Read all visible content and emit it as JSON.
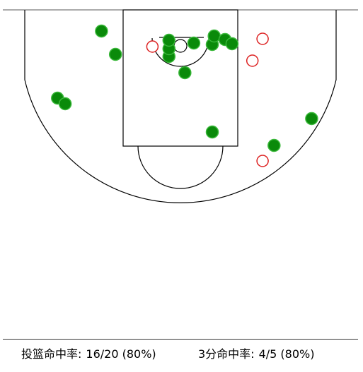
{
  "colors": {
    "made": "#0a8a0a",
    "made_stroke": "#3ab83a",
    "missed": "#dd2222",
    "court_line": "#000000"
  },
  "chart_data": {
    "type": "scatter",
    "title": "",
    "xlabel": "",
    "ylabel": "",
    "grid": false,
    "legend": "none",
    "x_units": "feet from rim (left negative)",
    "y_units": "feet from baseline",
    "xlim": [
      -25,
      25
    ],
    "ylim": [
      0,
      28
    ],
    "series": [
      {
        "marker": "filled-circle",
        "color": "#0a8a0a",
        "points": [
          [
            -1.8,
            6.6
          ],
          [
            -1.8,
            5.5
          ],
          [
            -1.8,
            4.3
          ],
          [
            2.1,
            4.7
          ],
          [
            5.0,
            4.9
          ],
          [
            5.3,
            3.7
          ],
          [
            7.0,
            4.2
          ],
          [
            8.1,
            4.8
          ],
          [
            0.7,
            8.9
          ],
          [
            -12.4,
            3.0
          ],
          [
            -10.2,
            6.3
          ],
          [
            -19.3,
            12.5
          ],
          [
            -18.1,
            13.3
          ],
          [
            5.0,
            17.3
          ],
          [
            14.7,
            19.2
          ],
          [
            20.6,
            15.4
          ]
        ]
      },
      {
        "marker": "hollow-circle",
        "color": "#dd2222",
        "points": [
          [
            -4.4,
            5.2
          ],
          [
            12.9,
            4.1
          ],
          [
            11.3,
            7.2
          ],
          [
            12.9,
            21.4
          ]
        ]
      }
    ]
  },
  "stats": {
    "fg_label": "投篮命中率:",
    "fg_value": "16/20 (80%)",
    "three_label": "3分命中率:",
    "three_value": "4/5 (80%)"
  }
}
